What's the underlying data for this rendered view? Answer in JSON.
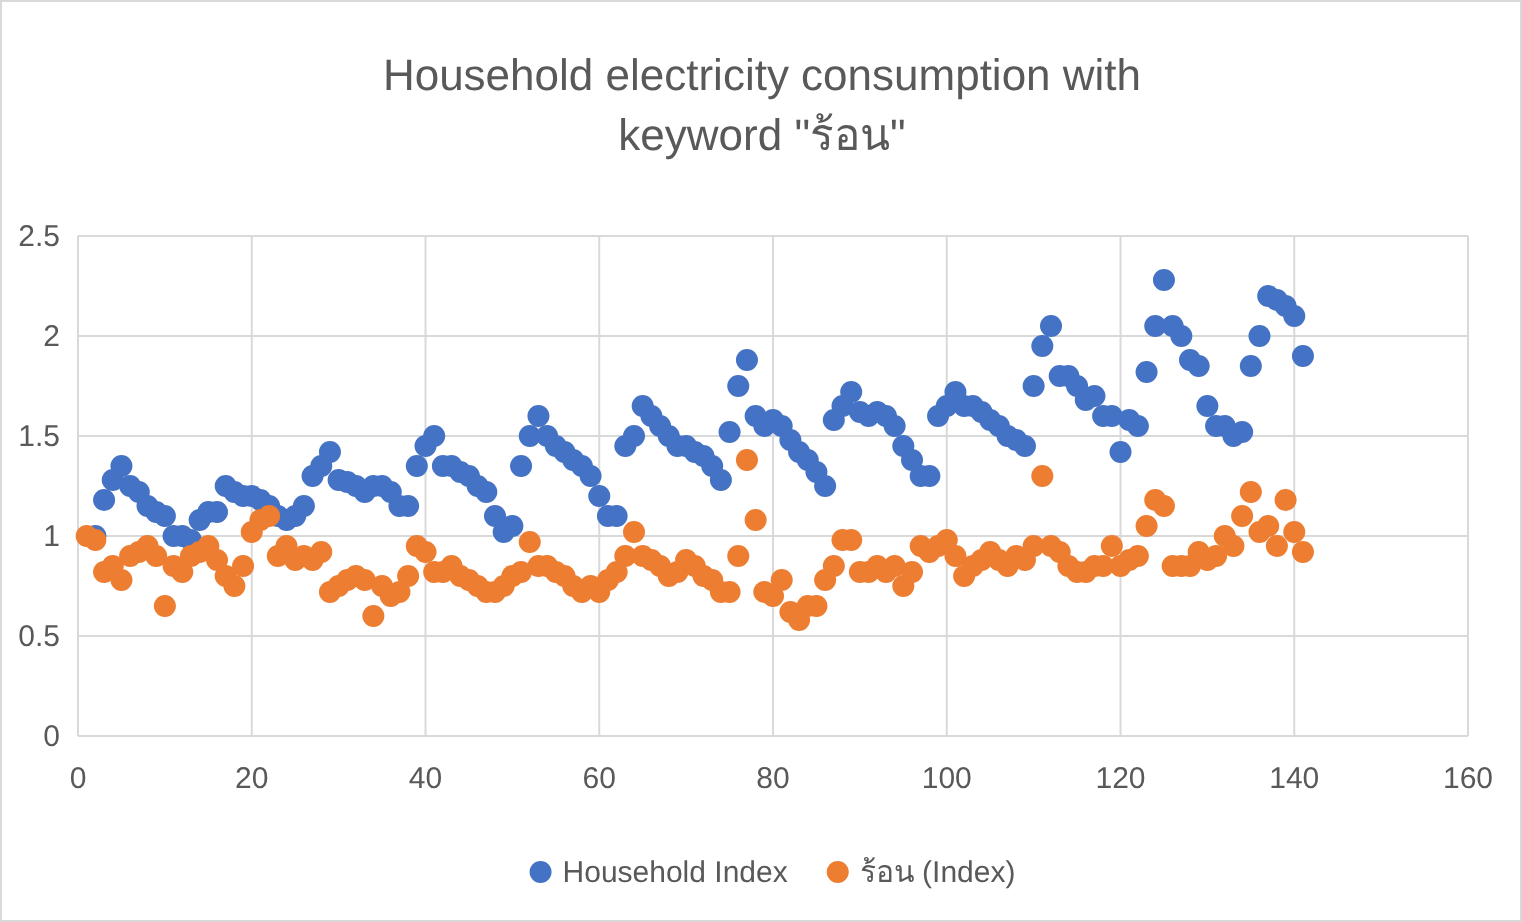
{
  "chart_data": {
    "type": "scatter",
    "title": "Household electricity consumption with keyword \"ร้อน\"",
    "x": [
      1,
      2,
      3,
      4,
      5,
      6,
      7,
      8,
      9,
      10,
      11,
      12,
      13,
      14,
      15,
      16,
      17,
      18,
      19,
      20,
      21,
      22,
      23,
      24,
      25,
      26,
      27,
      28,
      29,
      30,
      31,
      32,
      33,
      34,
      35,
      36,
      37,
      38,
      39,
      40,
      41,
      42,
      43,
      44,
      45,
      46,
      47,
      48,
      49,
      50,
      51,
      52,
      53,
      54,
      55,
      56,
      57,
      58,
      59,
      60,
      61,
      62,
      63,
      64,
      65,
      66,
      67,
      68,
      69,
      70,
      71,
      72,
      73,
      74,
      75,
      76,
      77,
      78,
      79,
      80,
      81,
      82,
      83,
      84,
      85,
      86,
      87,
      88,
      89,
      90,
      91,
      92,
      93,
      94,
      95,
      96,
      97,
      98,
      99,
      100,
      101,
      102,
      103,
      104,
      105,
      106,
      107,
      108,
      109,
      110,
      111,
      112,
      113,
      114,
      115,
      116,
      117,
      118,
      119,
      120,
      121,
      122,
      123,
      124,
      125,
      126,
      127,
      128,
      129,
      130,
      131,
      132,
      133,
      134,
      135,
      136,
      137,
      138,
      139,
      140,
      141
    ],
    "series": [
      {
        "name": "Household Index",
        "color": "#4472c4",
        "values": [
          null,
          1.0,
          1.18,
          1.28,
          1.35,
          1.25,
          1.22,
          1.15,
          1.12,
          1.1,
          1.0,
          1.0,
          0.98,
          1.08,
          1.12,
          1.12,
          1.25,
          1.22,
          1.2,
          1.2,
          1.18,
          1.15,
          1.1,
          1.08,
          1.1,
          1.15,
          1.3,
          1.35,
          1.42,
          1.28,
          1.27,
          1.25,
          1.22,
          1.25,
          1.25,
          1.22,
          1.15,
          1.15,
          1.35,
          1.45,
          1.5,
          1.35,
          1.35,
          1.32,
          1.3,
          1.25,
          1.22,
          1.1,
          1.02,
          1.05,
          1.35,
          1.5,
          1.6,
          1.5,
          1.45,
          1.42,
          1.38,
          1.35,
          1.3,
          1.2,
          1.1,
          1.1,
          1.45,
          1.5,
          1.65,
          1.6,
          1.55,
          1.5,
          1.45,
          1.45,
          1.42,
          1.4,
          1.35,
          1.28,
          1.52,
          1.75,
          1.88,
          1.6,
          1.55,
          1.58,
          1.55,
          1.48,
          1.42,
          1.38,
          1.32,
          1.25,
          1.58,
          1.65,
          1.72,
          1.62,
          1.6,
          1.62,
          1.6,
          1.55,
          1.45,
          1.38,
          1.3,
          1.3,
          1.6,
          1.65,
          1.72,
          1.65,
          1.65,
          1.62,
          1.58,
          1.55,
          1.5,
          1.48,
          1.45,
          1.75,
          1.95,
          2.05,
          1.8,
          1.8,
          1.75,
          1.68,
          1.7,
          1.6,
          1.6,
          1.42,
          1.58,
          1.55,
          1.82,
          2.05,
          2.28,
          2.05,
          2.0,
          1.88,
          1.85,
          1.65,
          1.55,
          1.55,
          1.5,
          1.52,
          1.85,
          2.0,
          2.2,
          2.18,
          2.15,
          2.1,
          1.9
        ]
      },
      {
        "name": "ร้อน (Index)",
        "color": "#ed7d31",
        "values": [
          1.0,
          0.98,
          0.82,
          0.85,
          0.78,
          0.9,
          0.92,
          0.95,
          0.9,
          0.65,
          0.85,
          0.82,
          0.9,
          0.92,
          0.95,
          0.88,
          0.8,
          0.75,
          0.85,
          1.02,
          1.08,
          1.1,
          0.9,
          0.95,
          0.88,
          0.9,
          0.88,
          0.92,
          0.72,
          0.75,
          0.78,
          0.8,
          0.78,
          0.6,
          0.75,
          0.7,
          0.72,
          0.8,
          0.95,
          0.92,
          0.82,
          0.82,
          0.85,
          0.8,
          0.78,
          0.75,
          0.72,
          0.72,
          0.75,
          0.8,
          0.82,
          0.97,
          0.85,
          0.85,
          0.82,
          0.8,
          0.75,
          0.72,
          0.75,
          0.72,
          0.78,
          0.82,
          0.9,
          1.02,
          0.9,
          0.88,
          0.85,
          0.8,
          0.82,
          0.88,
          0.85,
          0.8,
          0.78,
          0.72,
          0.72,
          0.9,
          1.38,
          1.08,
          0.72,
          0.7,
          0.78,
          0.62,
          0.58,
          0.65,
          0.65,
          0.78,
          0.85,
          0.98,
          0.98,
          0.82,
          0.82,
          0.85,
          0.82,
          0.85,
          0.75,
          0.82,
          0.95,
          0.92,
          0.95,
          0.98,
          0.9,
          0.8,
          0.85,
          0.88,
          0.92,
          0.88,
          0.85,
          0.9,
          0.88,
          0.95,
          1.3,
          0.95,
          0.92,
          0.85,
          0.82,
          0.82,
          0.85,
          0.85,
          0.95,
          0.85,
          0.88,
          0.9,
          1.05,
          1.18,
          1.15,
          0.85,
          0.85,
          0.85,
          0.92,
          0.88,
          0.9,
          1.0,
          0.95,
          1.1,
          1.22,
          1.02,
          1.05,
          0.95,
          1.18,
          1.02,
          0.92
        ]
      }
    ],
    "xlim": [
      0,
      160
    ],
    "xticks": [
      0,
      20,
      40,
      60,
      80,
      100,
      120,
      140,
      160
    ],
    "ylim": [
      0,
      2.5
    ],
    "yticks": [
      0,
      0.5,
      1,
      1.5,
      2,
      2.5
    ],
    "grid": true,
    "legend": "bottom",
    "marker": "circle"
  }
}
